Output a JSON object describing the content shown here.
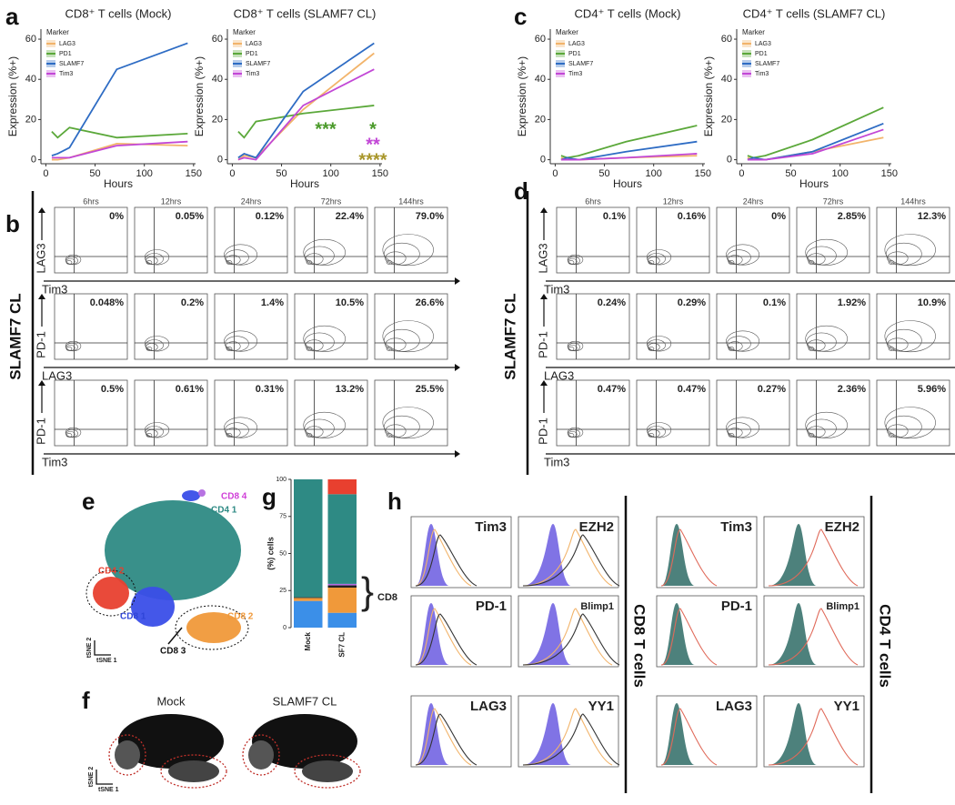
{
  "panel_labels": [
    "a",
    "b",
    "c",
    "d",
    "e",
    "f",
    "g",
    "h"
  ],
  "chart_data": [
    {
      "type": "line",
      "title": "CD8⁺ T cells (Mock)",
      "x_label": "Hours",
      "y_label": "Expression (%+)",
      "legend_title": "Marker",
      "legend": "upper left",
      "x": [
        6,
        12,
        24,
        72,
        144
      ],
      "xlim": [
        -5,
        152
      ],
      "xticks": [
        0,
        50,
        100,
        150
      ],
      "ylim": [
        -2,
        65
      ],
      "yticks": [
        0,
        20,
        40,
        60
      ],
      "series": [
        {
          "name": "LAG3",
          "color": "#f2b46b",
          "values": [
            0,
            0,
            1,
            8,
            7
          ]
        },
        {
          "name": "PD1",
          "color": "#5ba83a",
          "values": [
            14,
            11,
            16,
            11,
            13
          ]
        },
        {
          "name": "SLAMF7",
          "color": "#2e6cc4",
          "values": [
            2,
            3,
            6,
            45,
            58
          ]
        },
        {
          "name": "Tim3",
          "color": "#c247d6",
          "values": [
            1,
            1,
            1,
            7,
            9
          ]
        }
      ]
    },
    {
      "type": "line",
      "title": "CD8⁺ T cells (SLAMF7 CL)",
      "x_label": "Hours",
      "y_label": "Expression (%+)",
      "legend_title": "Marker",
      "legend": "upper left",
      "x": [
        6,
        12,
        24,
        72,
        144
      ],
      "xlim": [
        -5,
        152
      ],
      "xticks": [
        0,
        50,
        100,
        150
      ],
      "ylim": [
        -2,
        65
      ],
      "yticks": [
        0,
        20,
        40,
        60
      ],
      "series": [
        {
          "name": "LAG3",
          "color": "#f2b46b",
          "values": [
            0,
            2,
            1,
            25,
            53
          ]
        },
        {
          "name": "PD1",
          "color": "#5ba83a",
          "values": [
            14,
            11,
            19,
            23,
            27
          ]
        },
        {
          "name": "SLAMF7",
          "color": "#2e6cc4",
          "values": [
            1,
            3,
            1,
            34,
            58
          ]
        },
        {
          "name": "Tim3",
          "color": "#c247d6",
          "values": [
            0,
            1,
            0,
            27,
            45
          ]
        }
      ],
      "annotations": [
        {
          "text": "***",
          "color": "#4a9a2a"
        },
        {
          "text": "*",
          "color": "#4a9a2a"
        },
        {
          "text": "**",
          "color": "#c247d6"
        },
        {
          "text": "****",
          "color": "#a8962a"
        }
      ]
    },
    {
      "type": "line",
      "title": "CD4⁺ T cells (Mock)",
      "x_label": "Hours",
      "y_label": "Expression (%+)",
      "legend_title": "Marker",
      "legend": "upper left",
      "x": [
        6,
        12,
        24,
        72,
        144
      ],
      "xlim": [
        -5,
        152
      ],
      "xticks": [
        0,
        50,
        100,
        150
      ],
      "ylim": [
        -2,
        65
      ],
      "yticks": [
        0,
        20,
        40,
        60
      ],
      "series": [
        {
          "name": "LAG3",
          "color": "#f2b46b",
          "values": [
            1,
            0,
            0,
            1,
            2
          ]
        },
        {
          "name": "PD1",
          "color": "#5ba83a",
          "values": [
            2,
            1,
            2,
            9,
            17
          ]
        },
        {
          "name": "SLAMF7",
          "color": "#2e6cc4",
          "values": [
            0,
            1,
            0,
            4,
            9
          ]
        },
        {
          "name": "Tim3",
          "color": "#c247d6",
          "values": [
            0,
            0,
            0,
            1,
            3
          ]
        }
      ]
    },
    {
      "type": "line",
      "title": "CD4⁺ T cells (SLAMF7 CL)",
      "x_label": "Hours",
      "y_label": "Expression (%+)",
      "legend_title": "Marker",
      "legend": "upper left",
      "x": [
        6,
        12,
        24,
        72,
        144
      ],
      "xlim": [
        -5,
        152
      ],
      "xticks": [
        0,
        50,
        100,
        150
      ],
      "ylim": [
        -2,
        65
      ],
      "yticks": [
        0,
        20,
        40,
        60
      ],
      "series": [
        {
          "name": "LAG3",
          "color": "#f2b46b",
          "values": [
            1,
            0,
            0,
            4,
            11
          ]
        },
        {
          "name": "PD1",
          "color": "#5ba83a",
          "values": [
            2,
            1,
            2,
            10,
            26
          ]
        },
        {
          "name": "SLAMF7",
          "color": "#2e6cc4",
          "values": [
            0,
            1,
            0,
            4,
            18
          ]
        },
        {
          "name": "Tim3",
          "color": "#c247d6",
          "values": [
            0,
            0,
            0,
            3,
            15
          ]
        }
      ]
    },
    {
      "type": "bar",
      "stacked": true,
      "y_label": "(%) cells",
      "bracket_label": "CD8",
      "categories": [
        "Mock",
        "SF7 CL"
      ],
      "ylim": [
        0,
        100
      ],
      "yticks": [
        0,
        25,
        50,
        75,
        100
      ],
      "series": [
        {
          "color": "#3b8fe8",
          "values": [
            18,
            10
          ]
        },
        {
          "color": "#f0993a",
          "values": [
            2,
            17
          ]
        },
        {
          "color": "#222222",
          "values": [
            0.5,
            1.5
          ]
        },
        {
          "color": "#b36be0",
          "values": [
            0,
            1
          ]
        },
        {
          "color": "#2e8a84",
          "values": [
            79.5,
            60.5
          ]
        },
        {
          "color": "#e8402f",
          "values": [
            0,
            10
          ]
        }
      ]
    }
  ],
  "flow_b": {
    "side_label": "SLAMF7 CL",
    "columns": [
      "6hrs",
      "12hrs",
      "24hrs",
      "72hrs",
      "144hrs"
    ],
    "rows": [
      {
        "y_label": "LAG3",
        "x_label": "Tim3",
        "percents": [
          "0%",
          "0.05%",
          "0.12%",
          "22.4%",
          "79.0%"
        ]
      },
      {
        "y_label": "PD-1",
        "x_label": "LAG3",
        "percents": [
          "0.048%",
          "0.2%",
          "1.4%",
          "10.5%",
          "26.6%"
        ]
      },
      {
        "y_label": "PD-1",
        "x_label": "Tim3",
        "percents": [
          "0.5%",
          "0.61%",
          "0.31%",
          "13.2%",
          "25.5%"
        ]
      }
    ]
  },
  "flow_d": {
    "side_label": "SLAMF7 CL",
    "columns": [
      "6hrs",
      "12hrs",
      "24hrs",
      "72hrs",
      "144hrs"
    ],
    "rows": [
      {
        "y_label": "LAG3",
        "x_label": "Tim3",
        "percents": [
          "0.1%",
          "0.16%",
          "0%",
          "2.85%",
          "12.3%"
        ]
      },
      {
        "y_label": "PD-1",
        "x_label": "LAG3",
        "percents": [
          "0.24%",
          "0.29%",
          "0.1%",
          "1.92%",
          "10.9%"
        ]
      },
      {
        "y_label": "PD-1",
        "x_label": "Tim3",
        "percents": [
          "0.47%",
          "0.47%",
          "0.27%",
          "2.36%",
          "5.96%"
        ]
      }
    ]
  },
  "tsne_e": {
    "clusters": [
      "CD8 4",
      "CD4 1",
      "CD4 2",
      "CD8 1",
      "CD8 2",
      "CD8 3"
    ],
    "axis_y": "tSNE 2",
    "axis_x": "tSNE 1"
  },
  "tsne_f": {
    "titles": [
      "Mock",
      "SLAMF7 CL"
    ],
    "axis_y": "tSNE 2",
    "axis_x": "tSNE 1"
  },
  "histograms_h": [
    {
      "side_label": "CD8 T cells",
      "markers": [
        "Tim3",
        "EZH2",
        "PD-1",
        "Blimp1",
        "LAG3",
        "YY1"
      ]
    },
    {
      "side_label": "CD4 T cells",
      "markers": [
        "Tim3",
        "EZH2",
        "PD-1",
        "Blimp1",
        "LAG3",
        "YY1"
      ]
    }
  ]
}
